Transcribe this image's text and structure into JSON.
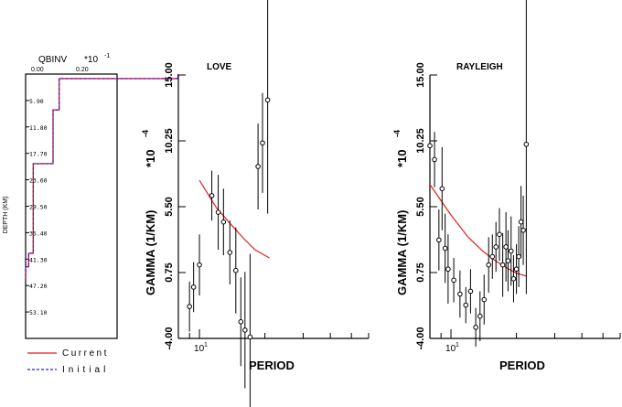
{
  "colors": {
    "current": "#e02020",
    "initial": "#2020e0",
    "axis": "#000000"
  },
  "chart_data": [
    {
      "type": "line",
      "title": "QBINV",
      "title_multiplier": "*10",
      "title_exponent": "-1",
      "ylabel": "DEPTH (KM)",
      "xticks": [
        "0.00",
        "0.20"
      ],
      "yticks": [
        "5.90",
        "11.80",
        "17.70",
        "23.60",
        "29.50",
        "35.40",
        "41.30",
        "47.20",
        "53.10"
      ],
      "xlim": [
        0,
        0.6
      ],
      "ylim": [
        0,
        59
      ],
      "legend": [
        {
          "name": "Current",
          "color": "#e02020",
          "style": "solid"
        },
        {
          "name": "Initial",
          "color": "#2020e0",
          "style": "dashed"
        }
      ],
      "series": [
        {
          "name": "Current",
          "steps": [
            [
              0,
              1
            ],
            [
              1,
              0.22
            ],
            [
              2,
              0.22
            ],
            [
              8,
              0.18
            ],
            [
              20,
              0.05
            ],
            [
              40,
              0.02
            ],
            [
              43,
              0
            ]
          ]
        },
        {
          "name": "Initial",
          "steps": [
            [
              0,
              1
            ],
            [
              1,
              0.22
            ],
            [
              2,
              0.22
            ],
            [
              8,
              0.18
            ],
            [
              20,
              0.05
            ],
            [
              40,
              0.02
            ],
            [
              43,
              0
            ]
          ]
        }
      ]
    },
    {
      "type": "scatter",
      "title": "LOVE",
      "xlabel": "PERIOD",
      "ylabel": "GAMMA (1/KM)",
      "ylabel_multiplier": "*10",
      "ylabel_exponent": "-4",
      "xscale": "log",
      "x_tick_label": "10",
      "x_tick_exp": "1",
      "xlim": [
        8,
        60
      ],
      "ylim": [
        -4.0,
        15.0
      ],
      "yticks": [
        "-4.00",
        "0.75",
        "5.50",
        "10.25",
        "15.00"
      ],
      "points": [
        {
          "x": 9.0,
          "y": -1.7,
          "err": 1.8
        },
        {
          "x": 9.4,
          "y": -0.3,
          "err": 1.8
        },
        {
          "x": 10.0,
          "y": 1.3,
          "err": 2.2
        },
        {
          "x": 11.4,
          "y": 6.3,
          "err": 1.8
        },
        {
          "x": 12.2,
          "y": 5.1,
          "err": 2.7
        },
        {
          "x": 12.9,
          "y": 4.4,
          "err": 2.4
        },
        {
          "x": 13.8,
          "y": 2.2,
          "err": 2.3
        },
        {
          "x": 14.7,
          "y": 0.9,
          "err": 3.1
        },
        {
          "x": 15.5,
          "y": -2.8,
          "err": 3.2
        },
        {
          "x": 16.2,
          "y": -3.4,
          "err": 4.2
        },
        {
          "x": 17.1,
          "y": -3.9,
          "err": 6.0
        },
        {
          "x": 18.6,
          "y": 8.4,
          "err": 3.1
        },
        {
          "x": 19.5,
          "y": 10.1,
          "err": 3.6
        },
        {
          "x": 20.6,
          "y": 13.2,
          "err": 8.2
        }
      ],
      "curve": [
        [
          10.0,
          7.4
        ],
        [
          12.0,
          5.4
        ],
        [
          14.0,
          4.2
        ],
        [
          16.0,
          3.2
        ],
        [
          18.0,
          2.4
        ],
        [
          21.0,
          1.8
        ]
      ]
    },
    {
      "type": "scatter",
      "title": "RAYLEIGH",
      "xlabel": "PERIOD",
      "ylabel": "GAMMA (1/KM)",
      "ylabel_multiplier": "*10",
      "ylabel_exponent": "-4",
      "xscale": "log",
      "x_tick_label": "10",
      "x_tick_exp": "1",
      "xlim": [
        8,
        60
      ],
      "ylim": [
        -4.0,
        15.0
      ],
      "yticks": [
        "-4.00",
        "0.75",
        "5.50",
        "10.25",
        "15.00"
      ],
      "points": [
        {
          "x": 8.0,
          "y": 9.9,
          "err": 2.2
        },
        {
          "x": 8.4,
          "y": 8.9,
          "err": 2.0
        },
        {
          "x": 8.8,
          "y": 3.1,
          "err": 2.2
        },
        {
          "x": 9.1,
          "y": 6.8,
          "err": 3.0
        },
        {
          "x": 9.4,
          "y": 2.5,
          "err": 2.5
        },
        {
          "x": 9.7,
          "y": 1.0,
          "err": 2.5
        },
        {
          "x": 10.3,
          "y": 0.2,
          "err": 1.6
        },
        {
          "x": 11.0,
          "y": -0.8,
          "err": 1.7
        },
        {
          "x": 11.7,
          "y": -1.6,
          "err": 1.3
        },
        {
          "x": 12.3,
          "y": -0.6,
          "err": 1.6
        },
        {
          "x": 13.0,
          "y": -3.2,
          "err": 1.4
        },
        {
          "x": 13.6,
          "y": -2.4,
          "err": 1.8
        },
        {
          "x": 14.2,
          "y": -1.2,
          "err": 1.8
        },
        {
          "x": 14.9,
          "y": 1.3,
          "err": 2.0
        },
        {
          "x": 15.5,
          "y": 1.9,
          "err": 1.6
        },
        {
          "x": 16.1,
          "y": 2.6,
          "err": 1.8
        },
        {
          "x": 16.7,
          "y": 3.5,
          "err": 1.9
        },
        {
          "x": 17.3,
          "y": 1.3,
          "err": 2.3
        },
        {
          "x": 17.9,
          "y": 2.6,
          "err": 2.5
        },
        {
          "x": 18.3,
          "y": 1.6,
          "err": 2.2
        },
        {
          "x": 18.9,
          "y": 2.3,
          "err": 2.5
        },
        {
          "x": 19.4,
          "y": 0.3,
          "err": 1.7
        },
        {
          "x": 20.0,
          "y": 1.0,
          "err": 1.8
        },
        {
          "x": 20.5,
          "y": 1.9,
          "err": 2.2
        },
        {
          "x": 21.0,
          "y": 4.4,
          "err": 2.6
        },
        {
          "x": 21.5,
          "y": 3.8,
          "err": 2.5
        },
        {
          "x": 22.2,
          "y": 10.0,
          "err": 10.8
        }
      ],
      "curve": [
        [
          8.0,
          7.1
        ],
        [
          10.0,
          4.9
        ],
        [
          12.0,
          3.3
        ],
        [
          14.0,
          2.3
        ],
        [
          16.0,
          1.6
        ],
        [
          18.0,
          1.1
        ],
        [
          20.0,
          0.7
        ],
        [
          22.2,
          0.5
        ]
      ]
    }
  ]
}
